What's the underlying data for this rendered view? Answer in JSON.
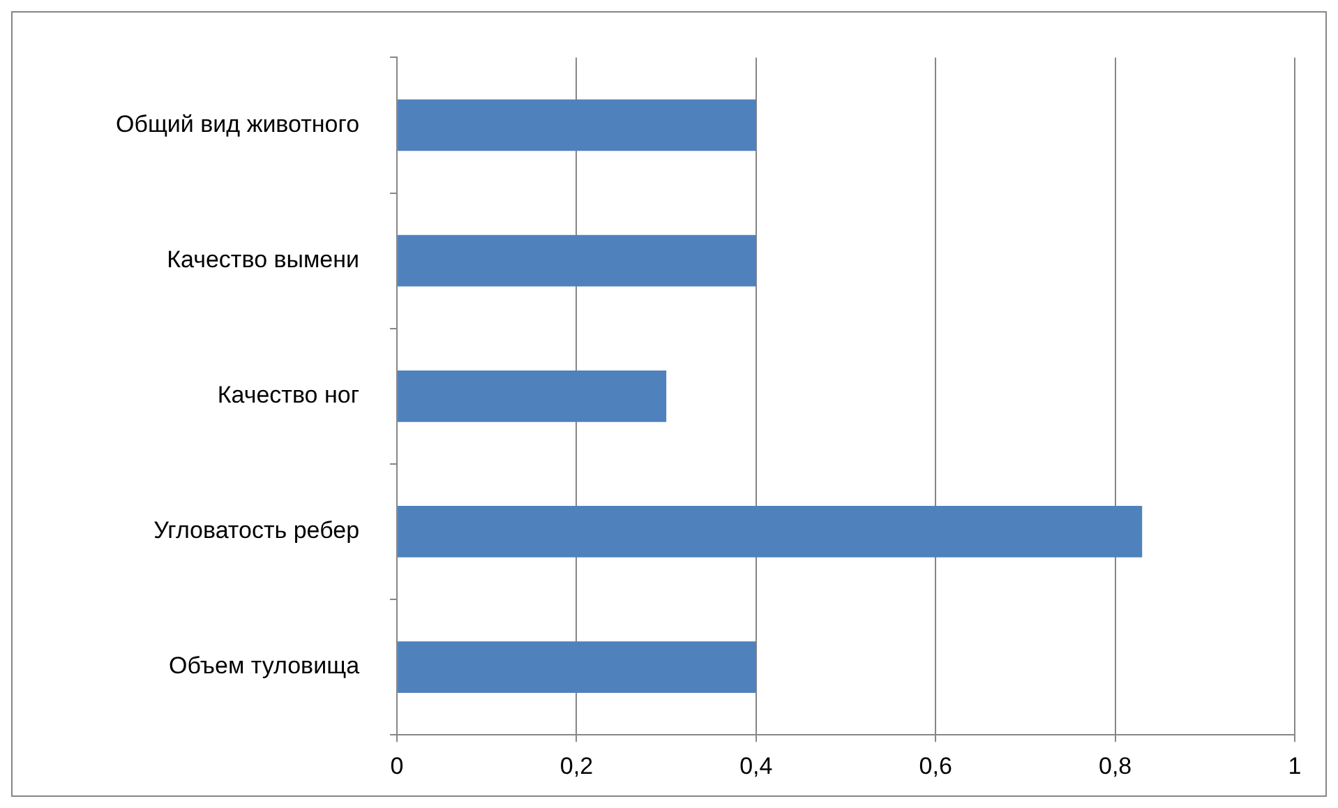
{
  "chart_data": {
    "type": "bar",
    "orientation": "horizontal",
    "categories": [
      "Общий вид животного",
      "Качество вымени",
      "Качество ног",
      "Угловатость ребер",
      "Объем туловища"
    ],
    "values": [
      0.4,
      0.4,
      0.3,
      0.83,
      0.4
    ],
    "color": "#4f81bd",
    "xlim": [
      0,
      1
    ],
    "xticks": [
      0,
      {
        "value": 0.2,
        "label": "0,2"
      },
      {
        "value": 0.4,
        "label": "0,4"
      },
      {
        "value": 0.6,
        "label": "0,6"
      },
      {
        "value": 0.8,
        "label": "0,8"
      },
      1
    ],
    "grid": "x"
  }
}
